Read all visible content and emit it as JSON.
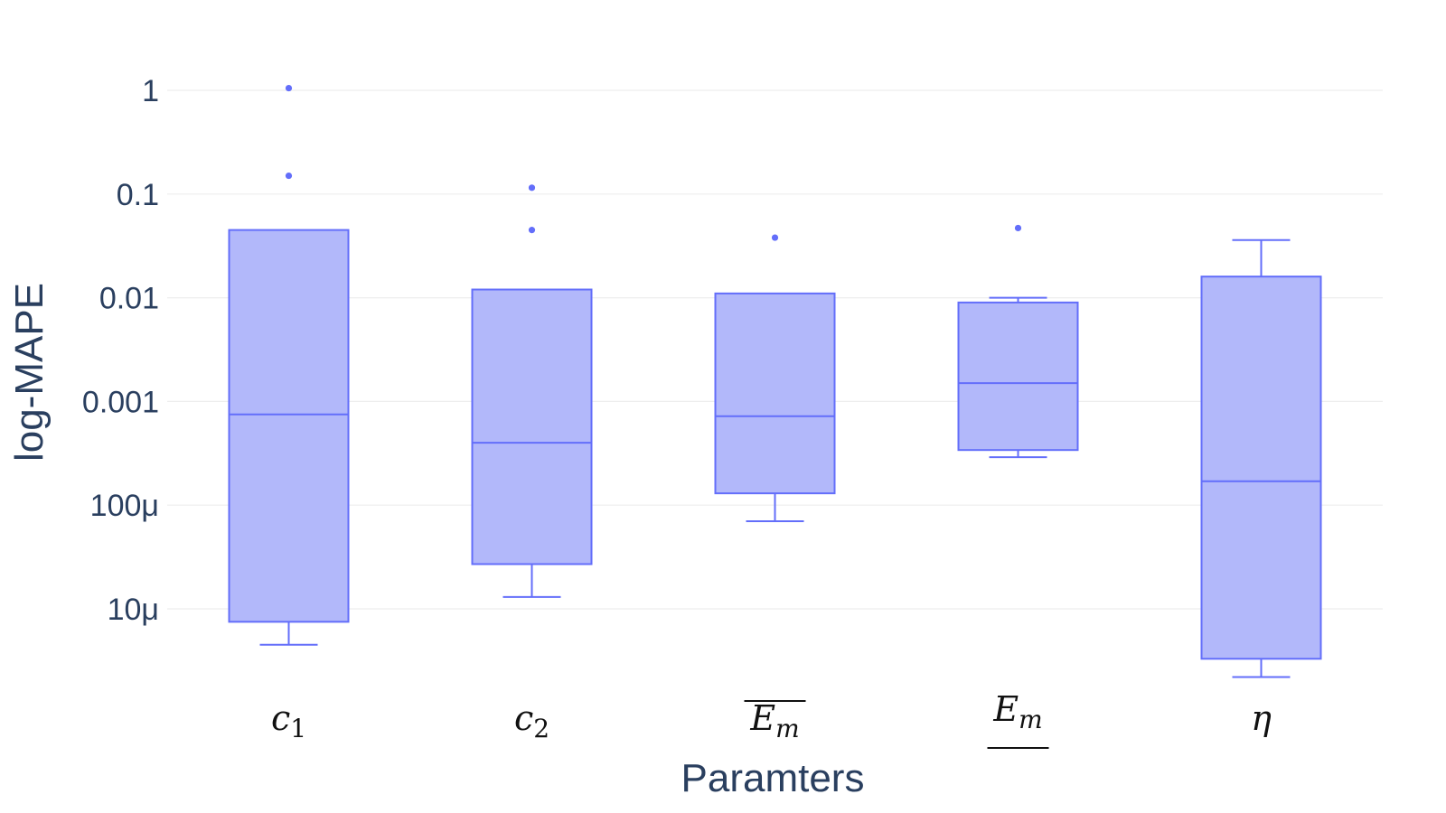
{
  "chart_data": {
    "type": "box",
    "xlabel": "Paramters",
    "ylabel": "log-MAPE",
    "yscale": "log",
    "ylim": [
      1.5e-06,
      2
    ],
    "yticks": [
      {
        "value": 1e-05,
        "label": "10μ"
      },
      {
        "value": 0.0001,
        "label": "100μ"
      },
      {
        "value": 0.001,
        "label": "0.001"
      },
      {
        "value": 0.01,
        "label": "0.01"
      },
      {
        "value": 0.1,
        "label": "0.1"
      },
      {
        "value": 1,
        "label": "1"
      }
    ],
    "grid": true,
    "color": "#636efa",
    "fill_color": "#aeb4fa",
    "categories": [
      {
        "base": "c",
        "sub": "1",
        "decoration": "none"
      },
      {
        "base": "c",
        "sub": "2",
        "decoration": "none"
      },
      {
        "base": "E",
        "sub": "m",
        "decoration": "overline"
      },
      {
        "base": "E",
        "sub": "m",
        "decoration": "underline"
      },
      {
        "base": "η",
        "sub": "",
        "decoration": "none"
      }
    ],
    "boxes": [
      {
        "whisker_low": 4.5e-06,
        "q1": 7.5e-06,
        "median": 0.00075,
        "q3": 0.045,
        "whisker_high": 0.045,
        "outliers": [
          0.15,
          1.05
        ]
      },
      {
        "whisker_low": 1.3e-05,
        "q1": 2.7e-05,
        "median": 0.0004,
        "q3": 0.012,
        "whisker_high": 0.012,
        "outliers": [
          0.045,
          0.115
        ]
      },
      {
        "whisker_low": 7e-05,
        "q1": 0.00013,
        "median": 0.00072,
        "q3": 0.011,
        "whisker_high": 0.011,
        "outliers": [
          0.038
        ]
      },
      {
        "whisker_low": 0.00029,
        "q1": 0.00034,
        "median": 0.0015,
        "q3": 0.009,
        "whisker_high": 0.01,
        "outliers": [
          0.047
        ]
      },
      {
        "whisker_low": 2.2e-06,
        "q1": 3.3e-06,
        "median": 0.00017,
        "q3": 0.016,
        "whisker_high": 0.036,
        "outliers": []
      }
    ]
  }
}
